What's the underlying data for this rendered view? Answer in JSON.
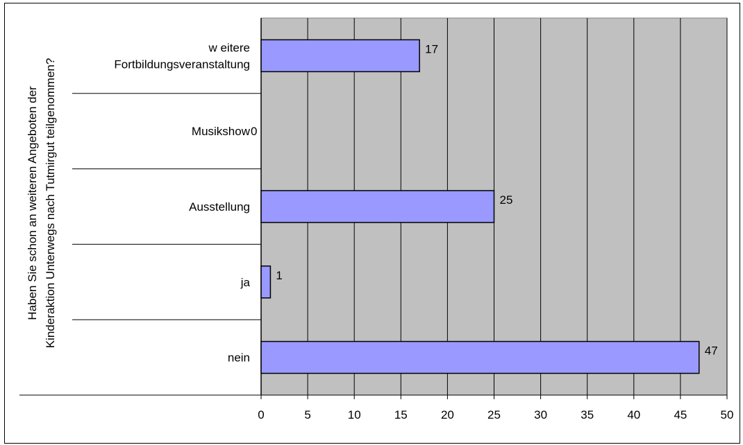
{
  "chart_data": {
    "type": "bar",
    "orientation": "horizontal",
    "title": "",
    "ylabel": "Haben Sie schon an weiteren Angeboten der Kinderaktion Unterwegs nach Tutmirgut teilgenommen?",
    "ylabel_lines": [
      "Haben Sie schon an weiteren Angeboten der",
      "Kinderaktion Unterwegs nach Tutmirgut teilgenommen?"
    ],
    "xlabel": "",
    "categories": [
      {
        "lines": [
          "w eitere",
          "Fortbildungsveranstaltung"
        ]
      },
      {
        "lines": [
          "Musikshow"
        ]
      },
      {
        "lines": [
          "Ausstellung"
        ]
      },
      {
        "lines": [
          "ja"
        ]
      },
      {
        "lines": [
          "nein"
        ]
      }
    ],
    "values": [
      17,
      0,
      25,
      1,
      47
    ],
    "data_labels": [
      "17",
      "0",
      "25",
      "1",
      "47"
    ],
    "xlim": [
      0,
      50
    ],
    "xticks": [
      "0",
      "5",
      "10",
      "15",
      "20",
      "25",
      "30",
      "35",
      "40",
      "45",
      "50"
    ],
    "grid": true,
    "legend": "none",
    "colors": {
      "bar_fill": "#9999ff",
      "plot_background": "#c0c0c0",
      "grid": "#000000"
    }
  }
}
